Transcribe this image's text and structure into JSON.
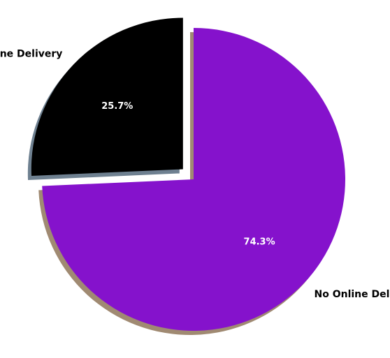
{
  "chart_data": {
    "type": "pie",
    "title": "",
    "slices": [
      {
        "label": "Online Delivery",
        "value": 25.7,
        "pct_label": "25.7%",
        "color": "#000000",
        "shadow_color": "#6e8090",
        "exploded": true
      },
      {
        "label": "No Online Delivery",
        "value": 74.3,
        "pct_label": "74.3%",
        "color": "#8512cc",
        "shadow_color": "#a08a72",
        "exploded": false
      }
    ],
    "legend": "none",
    "start_angle_deg": 90,
    "direction": "counterclockwise",
    "shadow": true
  }
}
